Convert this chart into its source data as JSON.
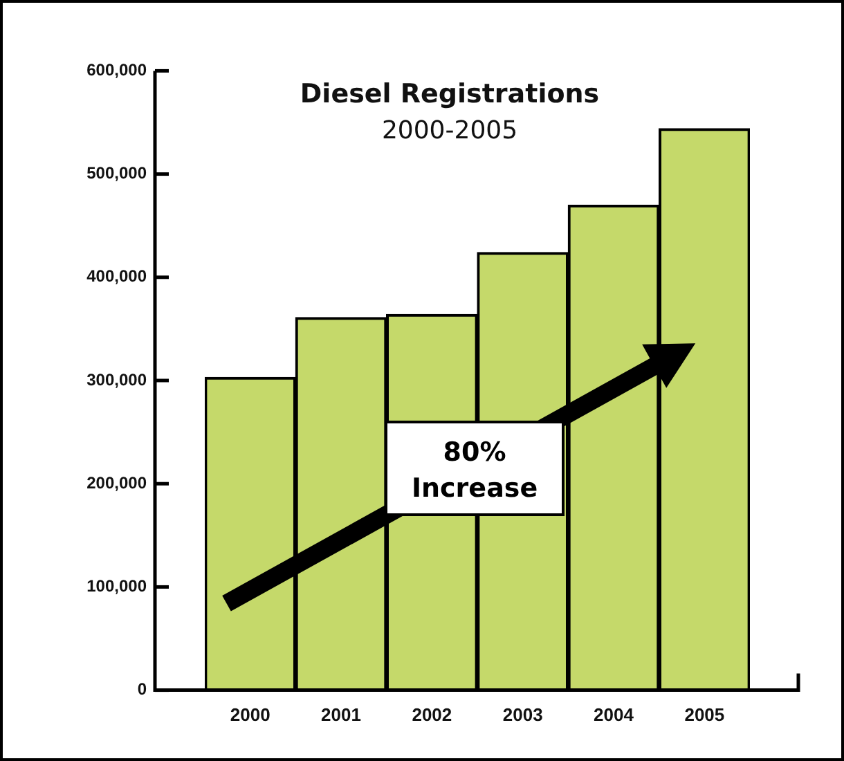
{
  "chart_data": {
    "type": "bar",
    "title": "Diesel Registrations",
    "subtitle": "2000-2005",
    "categories": [
      "2000",
      "2001",
      "2002",
      "2003",
      "2004",
      "2005"
    ],
    "values": [
      303000,
      361000,
      364000,
      424000,
      470000,
      544000
    ],
    "color": "#c5d96a",
    "ylim": [
      0,
      600000
    ],
    "yticks": [
      0,
      {
        "value": 100000,
        "label": "100,000"
      },
      {
        "value": 200000,
        "label": "200,000"
      },
      {
        "value": 300000,
        "label": "300,000"
      },
      {
        "value": 400000,
        "label": "400,000"
      },
      {
        "value": 500000,
        "label": "500,000"
      },
      {
        "value": 600000,
        "label": "600,000"
      }
    ],
    "grid": false,
    "legend": false,
    "annotations": [
      "80%\nIncrease"
    ]
  }
}
